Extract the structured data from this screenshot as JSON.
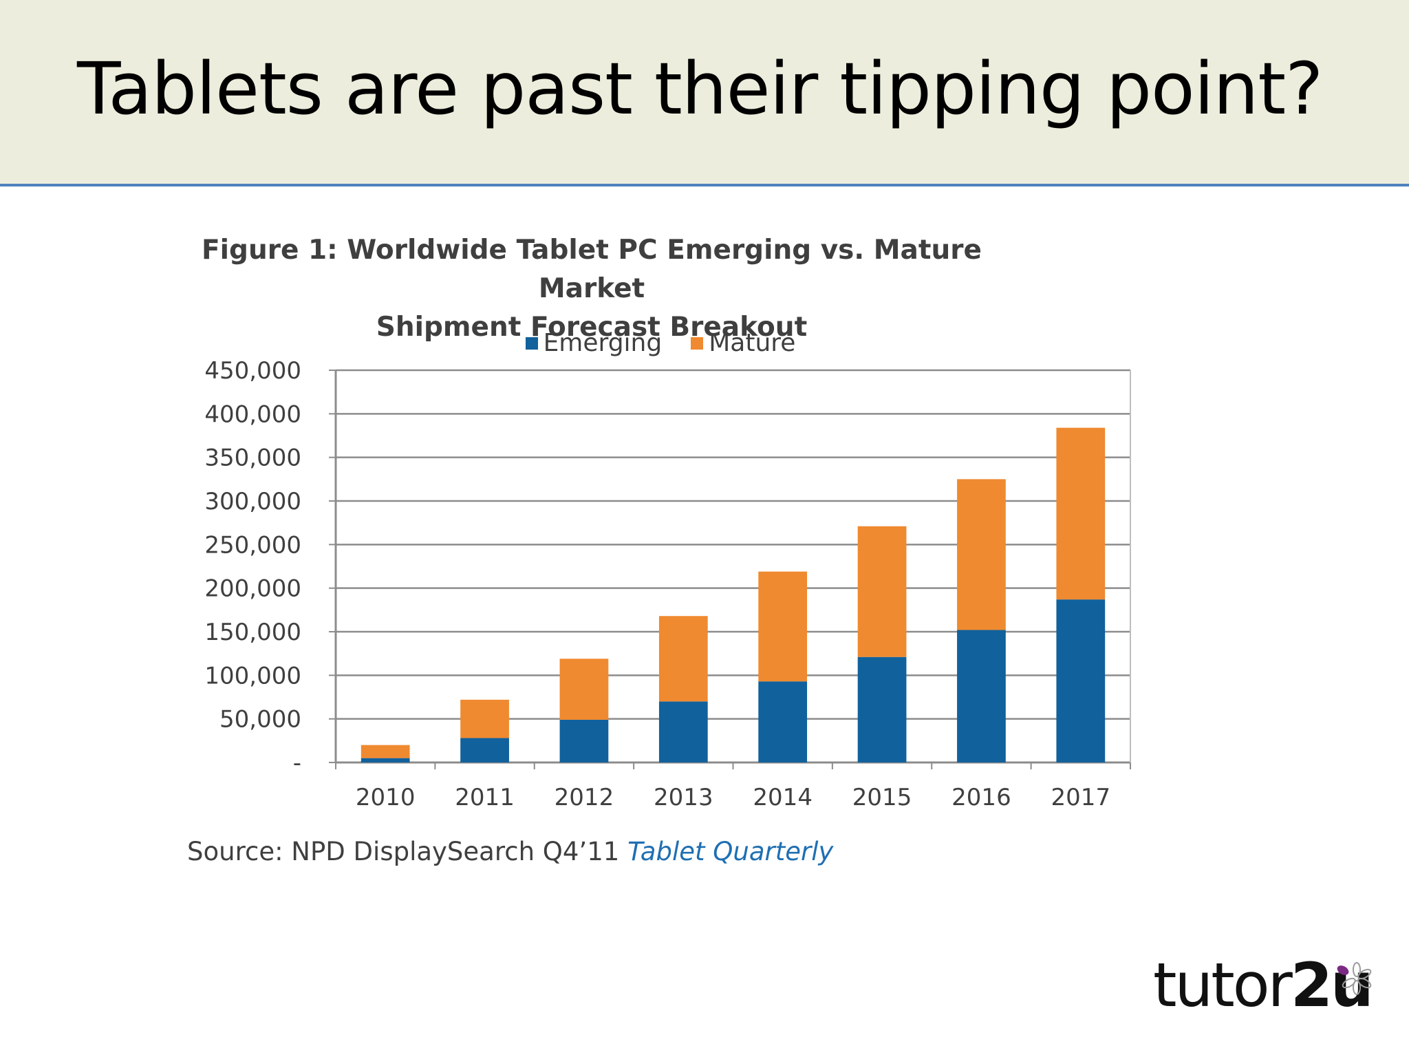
{
  "slide": {
    "title": "Tablets are past their tipping point?",
    "source_prefix": "Source: NPD DisplaySearch Q4’11 ",
    "source_publication": "Tablet Quarterly",
    "logo_text_part1": "tutor",
    "logo_text_part2": "2u"
  },
  "colors": {
    "emerging": "#11619c",
    "mature": "#ef8a30",
    "header_bg": "#eceddc",
    "accent_line": "#4f81bd"
  },
  "chart_data": {
    "type": "bar",
    "stacked": true,
    "title_line1": "Figure 1: Worldwide Tablet PC Emerging vs. Mature Market",
    "title_line2": "Shipment Forecast Breakout",
    "categories": [
      "2010",
      "2011",
      "2012",
      "2013",
      "2014",
      "2015",
      "2016",
      "2017"
    ],
    "series": [
      {
        "name": "Emerging",
        "values": [
          5000,
          28000,
          49000,
          70000,
          93000,
          121000,
          152000,
          187000
        ]
      },
      {
        "name": "Mature",
        "values": [
          15000,
          44000,
          70000,
          98000,
          126000,
          150000,
          173000,
          197000
        ]
      }
    ],
    "ylim": [
      0,
      450000
    ],
    "yticks": [
      0,
      50000,
      100000,
      150000,
      200000,
      250000,
      300000,
      350000,
      400000,
      450000
    ],
    "ytick_labels": [
      "-",
      "50,000",
      "100,000",
      "150,000",
      "200,000",
      "250,000",
      "300,000",
      "350,000",
      "400,000",
      "450,000"
    ],
    "xlabel": "",
    "ylabel": "",
    "grid": true,
    "legend_position": "top-center"
  }
}
